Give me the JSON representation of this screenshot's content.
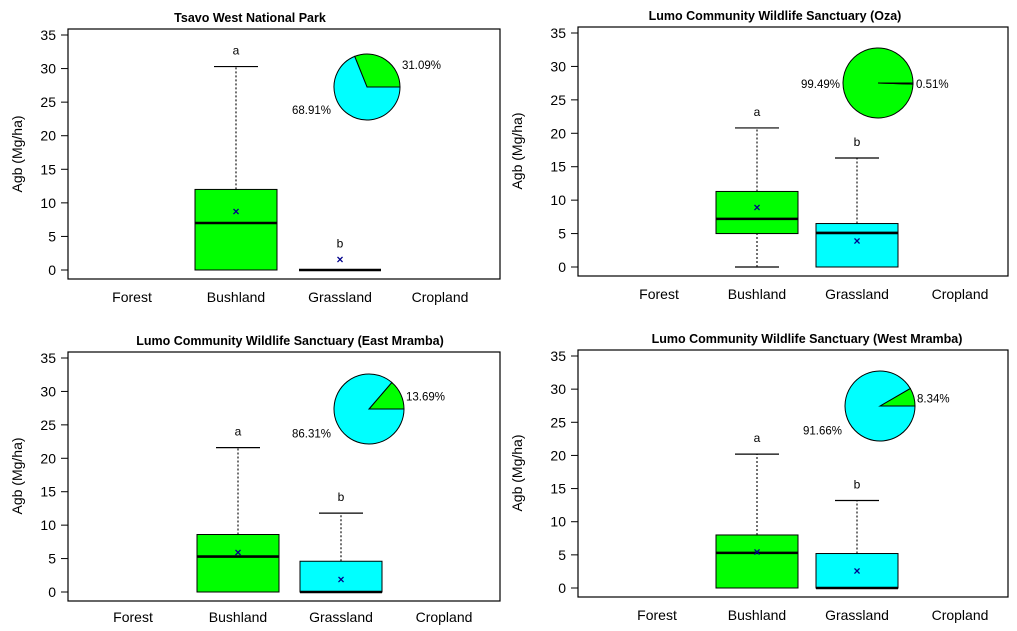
{
  "figure": {
    "colors": {
      "bushland": "#00ff00",
      "grassland": "#00ffff",
      "mean_marker": "#00008b",
      "stroke": "#000000"
    }
  },
  "chart_data": [
    {
      "type": "boxplot",
      "title": "Tsavo West National Park",
      "ylabel": "Agb (Mg/ha)",
      "categories": [
        "Forest",
        "Bushland",
        "Grassland",
        "Cropland"
      ],
      "ylim": [
        0,
        35
      ],
      "yticks": [
        0,
        5,
        10,
        15,
        20,
        25,
        30,
        35
      ],
      "boxes": [
        {
          "category": "Bushland",
          "min": 0,
          "q1": 0,
          "median": 7,
          "q3": 12,
          "max": 30.3,
          "mean": 8.7,
          "letter": "a"
        },
        {
          "category": "Grassland",
          "min": 0,
          "q1": 0,
          "median": 0,
          "q3": 0,
          "max": 0,
          "mean": 1.6,
          "letter": "b"
        }
      ],
      "pie": {
        "slices": [
          {
            "category": "Bushland",
            "value": 31.09,
            "label": "31.09%"
          },
          {
            "category": "Grassland",
            "value": 68.91,
            "label": "68.91%"
          }
        ]
      }
    },
    {
      "type": "boxplot",
      "title": "Lumo Community Wildlife Sanctuary (Oza)",
      "ylabel": "Agb (Mg/ha)",
      "categories": [
        "Forest",
        "Bushland",
        "Grassland",
        "Cropland"
      ],
      "ylim": [
        0,
        35
      ],
      "yticks": [
        0,
        5,
        10,
        15,
        20,
        25,
        30,
        35
      ],
      "boxes": [
        {
          "category": "Bushland",
          "min": 0,
          "q1": 5,
          "median": 7.2,
          "q3": 11.3,
          "max": 20.8,
          "mean": 8.9,
          "letter": "a"
        },
        {
          "category": "Grassland",
          "min": 0,
          "q1": 0,
          "median": 5.1,
          "q3": 6.5,
          "max": 16.3,
          "mean": 3.9,
          "letter": "b"
        }
      ],
      "pie": {
        "slices": [
          {
            "category": "Bushland",
            "value": 99.49,
            "label": "99.49%"
          },
          {
            "category": "Grassland",
            "value": 0.51,
            "label": "0.51%"
          }
        ]
      }
    },
    {
      "type": "boxplot",
      "title": "Lumo Community Wildlife Sanctuary (East Mramba)",
      "ylabel": "Agb (Mg/ha)",
      "categories": [
        "Forest",
        "Bushland",
        "Grassland",
        "Cropland"
      ],
      "ylim": [
        0,
        35
      ],
      "yticks": [
        0,
        5,
        10,
        15,
        20,
        25,
        30,
        35
      ],
      "boxes": [
        {
          "category": "Bushland",
          "min": 0,
          "q1": 0,
          "median": 5.3,
          "q3": 8.6,
          "max": 21.6,
          "mean": 5.9,
          "letter": "a"
        },
        {
          "category": "Grassland",
          "min": 0,
          "q1": 0,
          "median": 0,
          "q3": 4.6,
          "max": 11.8,
          "mean": 1.9,
          "letter": "b"
        }
      ],
      "pie": {
        "slices": [
          {
            "category": "Bushland",
            "value": 13.69,
            "label": "13.69%"
          },
          {
            "category": "Grassland",
            "value": 86.31,
            "label": "86.31%"
          }
        ]
      }
    },
    {
      "type": "boxplot",
      "title": "Lumo Community Wildlife Sanctuary (West Mramba)",
      "ylabel": "Agb (Mg/ha)",
      "categories": [
        "Forest",
        "Bushland",
        "Grassland",
        "Cropland"
      ],
      "ylim": [
        0,
        35
      ],
      "yticks": [
        0,
        5,
        10,
        15,
        20,
        25,
        30,
        35
      ],
      "boxes": [
        {
          "category": "Bushland",
          "min": 0,
          "q1": 0,
          "median": 5.3,
          "q3": 8,
          "max": 20.2,
          "mean": 5.4,
          "letter": "a"
        },
        {
          "category": "Grassland",
          "min": 0,
          "q1": 0,
          "median": 0,
          "q3": 5.2,
          "max": 13.2,
          "mean": 2.6,
          "letter": "b"
        }
      ],
      "pie": {
        "slices": [
          {
            "category": "Bushland",
            "value": 8.34,
            "label": "8.34%"
          },
          {
            "category": "Grassland",
            "value": 91.66,
            "label": "91.66%"
          }
        ]
      }
    }
  ]
}
